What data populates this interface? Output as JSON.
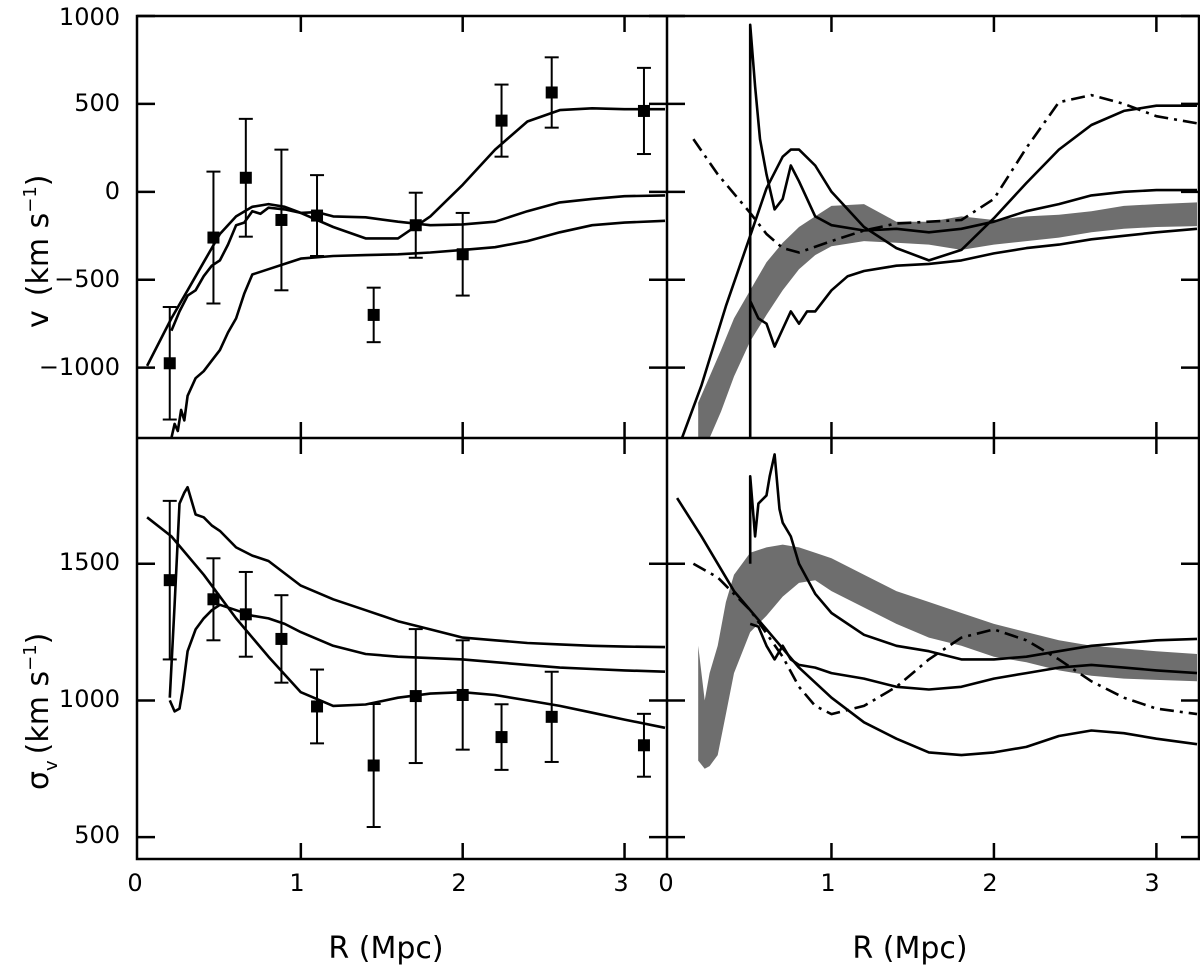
{
  "chart_data": {
    "type": "line",
    "layout": "2x2 panels, shared x axis",
    "xlabel": "R (Mpc)",
    "xlim": [
      0,
      3.25
    ],
    "x_ticks": [
      "0",
      "1",
      "2",
      "3"
    ],
    "panels": {
      "top_left": {
        "ylabel_symbol": "v",
        "ylabel_units": "(km s",
        "ylabel_exp": "−1",
        "ylim": [
          -1400,
          1000
        ],
        "y_ticks": [
          "1000",
          "500",
          "0",
          "−500",
          "−1000"
        ],
        "points": {
          "x": [
            0.19,
            0.46,
            0.66,
            0.88,
            1.1,
            1.45,
            1.71,
            2.0,
            2.24,
            2.55,
            3.12
          ],
          "y": [
            -975,
            -260,
            80,
            -160,
            -135,
            -700,
            -190,
            -355,
            405,
            565,
            460
          ],
          "err": [
            320,
            375,
            335,
            400,
            230,
            155,
            185,
            235,
            205,
            200,
            245
          ]
        },
        "series": [
          {
            "name": "upper curve",
            "style": "solid",
            "x": [
              0.05,
              0.2,
              0.3,
              0.4,
              0.5,
              0.6,
              0.7,
              0.8,
              0.9,
              1.0,
              1.2,
              1.4,
              1.6,
              1.8,
              2.0,
              2.2,
              2.4,
              2.6,
              2.8,
              3.0,
              3.25
            ],
            "y": [
              -990,
              -720,
              -560,
              -400,
              -240,
              -140,
              -85,
              -70,
              -85,
              -120,
              -200,
              -265,
              -265,
              -140,
              40,
              240,
              400,
              465,
              475,
              470,
              470
            ]
          },
          {
            "name": "middle curve",
            "style": "solid",
            "x": [
              0.2,
              0.25,
              0.3,
              0.35,
              0.4,
              0.45,
              0.5,
              0.55,
              0.6,
              0.65,
              0.7,
              0.75,
              0.8,
              0.9,
              1.0,
              1.1,
              1.2,
              1.4,
              1.6,
              1.8,
              2.0,
              2.2,
              2.4,
              2.6,
              2.8,
              3.0,
              3.25
            ],
            "y": [
              -790,
              -680,
              -590,
              -560,
              -480,
              -420,
              -390,
              -300,
              -190,
              -175,
              -110,
              -125,
              -90,
              -100,
              -120,
              -115,
              -140,
              -145,
              -170,
              -190,
              -185,
              -170,
              -110,
              -60,
              -40,
              -25,
              -20
            ]
          },
          {
            "name": "lower curve",
            "style": "solid",
            "x": [
              0.2,
              0.22,
              0.24,
              0.26,
              0.28,
              0.3,
              0.35,
              0.4,
              0.45,
              0.5,
              0.55,
              0.6,
              0.65,
              0.7,
              0.8,
              0.9,
              1.0,
              1.2,
              1.4,
              1.6,
              1.8,
              2.0,
              2.2,
              2.4,
              2.6,
              2.8,
              3.0,
              3.25
            ],
            "y": [
              -1400,
              -1320,
              -1360,
              -1240,
              -1300,
              -1160,
              -1060,
              -1020,
              -960,
              -900,
              -800,
              -720,
              -580,
              -470,
              -440,
              -410,
              -380,
              -365,
              -360,
              -355,
              -345,
              -330,
              -315,
              -280,
              -230,
              -190,
              -175,
              -165
            ]
          }
        ]
      },
      "top_right": {
        "ylim": [
          -1400,
          1000
        ],
        "shaded_band": {
          "x": [
            0.18,
            0.25,
            0.32,
            0.4,
            0.5,
            0.6,
            0.7,
            0.8,
            0.9,
            1.0,
            1.2,
            1.4,
            1.6,
            1.8,
            2.0,
            2.2,
            2.4,
            2.6,
            2.8,
            3.0,
            3.25
          ],
          "lower": [
            -1400,
            -1400,
            -1250,
            -1050,
            -850,
            -700,
            -560,
            -440,
            -360,
            -310,
            -280,
            -290,
            -300,
            -330,
            -300,
            -280,
            -260,
            -230,
            -210,
            -200,
            -195
          ],
          "upper": [
            -1200,
            -1050,
            -900,
            -720,
            -560,
            -400,
            -290,
            -200,
            -140,
            -80,
            -70,
            -170,
            -170,
            -140,
            -160,
            -140,
            -130,
            -110,
            -80,
            -70,
            -60
          ]
        },
        "series": [
          {
            "name": "spiky solid curve",
            "style": "solid",
            "x": [
              0.5,
              0.5,
              0.53,
              0.56,
              0.6,
              0.65,
              0.7,
              0.75,
              0.8,
              0.9,
              1.0,
              1.2,
              1.4,
              1.6,
              1.8,
              2.0,
              2.2,
              2.4,
              2.6,
              2.8,
              3.0,
              3.25
            ],
            "y": [
              -1400,
              950,
              600,
              300,
              100,
              -100,
              -40,
              150,
              60,
              -140,
              -190,
              -220,
              -210,
              -230,
              -210,
              -170,
              -110,
              -70,
              -20,
              0,
              10,
              10
            ]
          },
          {
            "name": "smooth solid curve",
            "style": "solid",
            "x": [
              0.08,
              0.2,
              0.35,
              0.5,
              0.6,
              0.7,
              0.75,
              0.8,
              0.9,
              1.0,
              1.2,
              1.4,
              1.6,
              1.8,
              2.0,
              2.2,
              2.4,
              2.6,
              2.8,
              3.0,
              3.25
            ],
            "y": [
              -1400,
              -1100,
              -650,
              -250,
              20,
              200,
              240,
              240,
              150,
              0,
              -200,
              -320,
              -390,
              -330,
              -150,
              50,
              240,
              380,
              460,
              490,
              490
            ]
          },
          {
            "name": "lower solid curve",
            "style": "solid",
            "x": [
              0.5,
              0.55,
              0.6,
              0.65,
              0.7,
              0.75,
              0.8,
              0.85,
              0.9,
              1.0,
              1.1,
              1.2,
              1.4,
              1.6,
              1.8,
              2.0,
              2.2,
              2.4,
              2.6,
              2.8,
              3.0,
              3.25
            ],
            "y": [
              -620,
              -720,
              -750,
              -880,
              -780,
              -680,
              -750,
              -680,
              -680,
              -560,
              -480,
              -450,
              -420,
              -410,
              -390,
              -350,
              -320,
              -300,
              -270,
              -250,
              -230,
              -210
            ]
          },
          {
            "name": "dash-dot curve",
            "style": "dashdot",
            "x": [
              0.15,
              0.3,
              0.5,
              0.6,
              0.7,
              0.8,
              1.0,
              1.2,
              1.4,
              1.6,
              1.8,
              2.0,
              2.2,
              2.4,
              2.6,
              2.8,
              3.0,
              3.25
            ],
            "y": [
              300,
              100,
              -120,
              -240,
              -320,
              -345,
              -280,
              -220,
              -180,
              -170,
              -160,
              -40,
              250,
              510,
              550,
              500,
              430,
              390
            ]
          }
        ]
      },
      "bottom_left": {
        "ylabel_symbol": "σ",
        "ylabel_sub": "v",
        "ylabel_units": "(km s",
        "ylabel_exp": "−1",
        "ylim": [
          420,
          1960
        ],
        "y_ticks": [
          "1500",
          "1000",
          "500"
        ],
        "points": {
          "x": [
            0.19,
            0.46,
            0.66,
            0.88,
            1.1,
            1.45,
            1.71,
            2.0,
            2.24,
            2.55,
            3.12
          ],
          "y": [
            1440,
            1370,
            1315,
            1225,
            978,
            762,
            1016,
            1020,
            866,
            940,
            836
          ],
          "err": [
            290,
            150,
            155,
            160,
            135,
            225,
            245,
            200,
            120,
            165,
            115
          ]
        },
        "series": [
          {
            "name": "upper curve",
            "style": "solid",
            "x": [
              0.19,
              0.22,
              0.25,
              0.28,
              0.3,
              0.32,
              0.35,
              0.4,
              0.45,
              0.5,
              0.6,
              0.7,
              0.8,
              1.0,
              1.2,
              1.4,
              1.6,
              1.8,
              2.0,
              2.2,
              2.4,
              2.6,
              2.8,
              3.0,
              3.25
            ],
            "y": [
              1010,
              1350,
              1720,
              1760,
              1780,
              1740,
              1680,
              1670,
              1640,
              1620,
              1560,
              1530,
              1510,
              1420,
              1370,
              1330,
              1290,
              1260,
              1230,
              1220,
              1210,
              1205,
              1200,
              1197,
              1195
            ]
          },
          {
            "name": "middle curve",
            "style": "solid",
            "x": [
              0.19,
              0.22,
              0.25,
              0.27,
              0.3,
              0.35,
              0.4,
              0.45,
              0.5,
              0.6,
              0.7,
              0.8,
              0.9,
              1.0,
              1.2,
              1.4,
              1.6,
              1.8,
              2.0,
              2.2,
              2.4,
              2.6,
              2.8,
              3.0,
              3.25
            ],
            "y": [
              1000,
              960,
              970,
              1040,
              1180,
              1260,
              1300,
              1330,
              1350,
              1330,
              1310,
              1300,
              1280,
              1250,
              1200,
              1170,
              1160,
              1155,
              1150,
              1140,
              1130,
              1120,
              1115,
              1110,
              1105
            ]
          },
          {
            "name": "smooth curve",
            "style": "solid",
            "x": [
              0.05,
              0.2,
              0.4,
              0.6,
              0.8,
              1.0,
              1.2,
              1.4,
              1.6,
              1.8,
              2.0,
              2.2,
              2.4,
              2.6,
              2.8,
              3.0,
              3.25
            ],
            "y": [
              1670,
              1600,
              1460,
              1300,
              1160,
              1030,
              980,
              985,
              1010,
              1025,
              1030,
              1020,
              1000,
              980,
              955,
              930,
              900
            ]
          }
        ]
      },
      "bottom_right": {
        "ylim": [
          420,
          1960
        ],
        "shaded_band": {
          "x": [
            0.18,
            0.22,
            0.25,
            0.3,
            0.35,
            0.4,
            0.5,
            0.6,
            0.7,
            0.8,
            0.9,
            1.0,
            1.2,
            1.4,
            1.6,
            1.8,
            2.0,
            2.2,
            2.4,
            2.6,
            2.8,
            3.0,
            3.25
          ],
          "lower": [
            780,
            750,
            760,
            800,
            950,
            1100,
            1250,
            1310,
            1380,
            1430,
            1440,
            1400,
            1340,
            1280,
            1230,
            1200,
            1160,
            1140,
            1110,
            1090,
            1080,
            1075,
            1070
          ],
          "upper": [
            1200,
            1000,
            1100,
            1200,
            1360,
            1460,
            1540,
            1560,
            1570,
            1560,
            1540,
            1520,
            1460,
            1400,
            1360,
            1320,
            1280,
            1250,
            1220,
            1200,
            1190,
            1180,
            1170
          ]
        },
        "series": [
          {
            "name": "spiky solid curve",
            "style": "solid",
            "x": [
              0.5,
              0.5,
              0.53,
              0.55,
              0.6,
              0.62,
              0.65,
              0.68,
              0.7,
              0.75,
              0.8,
              0.9,
              1.0,
              1.2,
              1.4,
              1.6,
              1.8,
              2.0,
              2.2,
              2.4,
              2.6,
              2.8,
              3.0,
              3.25
            ],
            "y": [
              1500,
              1820,
              1600,
              1720,
              1750,
              1820,
              1900,
              1700,
              1650,
              1600,
              1500,
              1390,
              1320,
              1240,
              1200,
              1180,
              1150,
              1150,
              1160,
              1180,
              1200,
              1210,
              1220,
              1225
            ]
          },
          {
            "name": "smooth solid curve",
            "style": "solid",
            "x": [
              0.05,
              0.2,
              0.4,
              0.6,
              0.8,
              1.0,
              1.2,
              1.4,
              1.6,
              1.8,
              2.0,
              2.2,
              2.4,
              2.6,
              2.8,
              3.0,
              3.25
            ],
            "y": [
              1740,
              1600,
              1400,
              1260,
              1120,
              1010,
              920,
              860,
              810,
              800,
              810,
              830,
              870,
              890,
              880,
              860,
              840
            ]
          },
          {
            "name": "middle solid curve",
            "style": "solid",
            "x": [
              0.5,
              0.55,
              0.6,
              0.65,
              0.7,
              0.75,
              0.8,
              0.9,
              1.0,
              1.2,
              1.4,
              1.6,
              1.8,
              2.0,
              2.2,
              2.4,
              2.6,
              2.8,
              3.0,
              3.25
            ],
            "y": [
              1280,
              1270,
              1200,
              1150,
              1200,
              1150,
              1130,
              1120,
              1100,
              1080,
              1050,
              1040,
              1050,
              1080,
              1100,
              1120,
              1130,
              1120,
              1110,
              1100
            ]
          },
          {
            "name": "dash-dot curve",
            "style": "dashdot",
            "x": [
              0.15,
              0.3,
              0.5,
              0.7,
              0.8,
              0.9,
              1.0,
              1.2,
              1.4,
              1.6,
              1.8,
              2.0,
              2.2,
              2.4,
              2.6,
              2.8,
              3.0,
              3.25
            ],
            "y": [
              1500,
              1450,
              1330,
              1160,
              1050,
              980,
              950,
              980,
              1050,
              1150,
              1230,
              1260,
              1220,
              1150,
              1070,
              1010,
              970,
              950
            ]
          }
        ]
      }
    }
  }
}
